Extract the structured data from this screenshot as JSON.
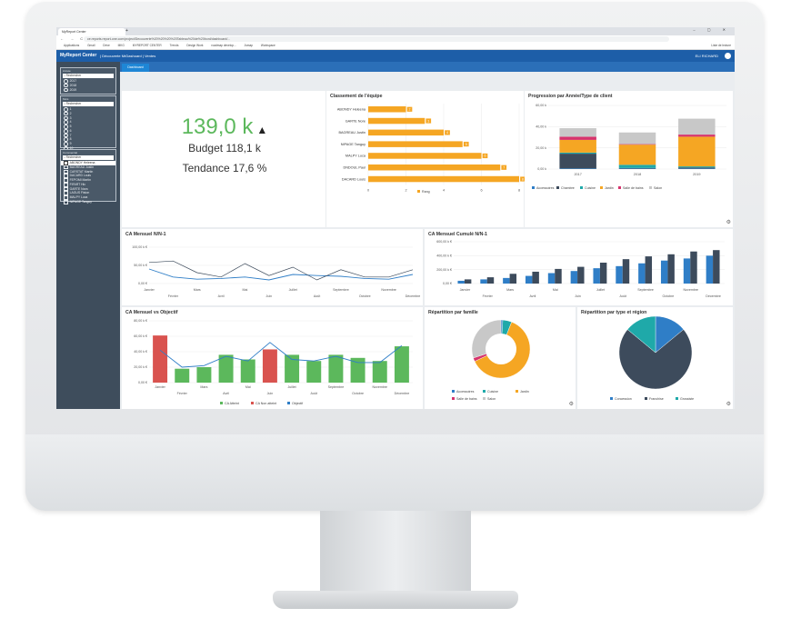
{
  "browser": {
    "tab_title": "MyReport Center",
    "url": "ce.reports.report-one.com/project/Decouverte%20%20%20%20Tableau%20de%20bord/dashboard/...",
    "window_controls": "– ▢ ✕",
    "nav": "← → C",
    "bookmarks": [
      "Applications",
      "Gmail",
      "Drive",
      "MKG",
      "MYREPORT CENTER",
      "Trends",
      "Design Work",
      "roadmap develop...",
      "Jsmap",
      "Workspace"
    ],
    "bookmarks_right": "Liste de lecture"
  },
  "app": {
    "logo": "MyReport Center",
    "breadcrumb": "| Découverte MrDashoard  |  Ventes",
    "user": "ELI RICHARD",
    "tab": "Dashboard"
  },
  "filters": {
    "annee": {
      "title": "Année",
      "search": "Rechercher",
      "items": [
        "2017",
        "2018",
        "2019"
      ]
    },
    "mois": {
      "title": "Mois",
      "search": "Rechercher",
      "items": [
        "1",
        "2",
        "3",
        "4",
        "5",
        "6",
        "7",
        "8",
        "9",
        "10"
      ]
    },
    "commercial": {
      "title": "Commercial",
      "search": "Rechercher",
      "items": [
        "ABONDY Heleena",
        "BAGREAU Justin",
        "CARSTAT Martin",
        "DACARD Louis",
        "FEPOMI Martin",
        "FIFART Hix",
        "GARTE Nora",
        "LAGUS Fiston",
        "MALPY Luca",
        "NIPAGE Tanguy"
      ]
    }
  },
  "kpi": {
    "value": "139,0 k",
    "arrow": "▲",
    "budget": "Budget 118,1 k",
    "tendance": "Tendance 17,6 %"
  },
  "colors": {
    "green": "#5cb85c",
    "red": "#d9534f",
    "blue": "#2f7ec7",
    "navy": "#3d4b5c",
    "orange": "#f5a623",
    "teal": "#1fa9a9",
    "magenta": "#d6336c",
    "gray": "#c8c8c8"
  },
  "chart_data": [
    {
      "id": "classement",
      "type": "bar",
      "title": "Classement de l'équipe",
      "orientation": "horizontal",
      "categories": [
        "ABONDY Heleena",
        "GARTE Nore",
        "BAGREAU Justin",
        "NIPAGE Tanguy",
        "MALPY Luca",
        "DNDOUL Paul",
        "DACARD Louis"
      ],
      "values": [
        2,
        3,
        4,
        5,
        6,
        7,
        8
      ],
      "xticks": [
        "0",
        "2",
        "4",
        "6",
        "8"
      ],
      "xlim": [
        0,
        8
      ],
      "legend": [
        "Rang"
      ]
    },
    {
      "id": "progression",
      "type": "bar",
      "title": "Progression par Année/Type de client",
      "stacked": true,
      "categories": [
        "2017",
        "2018",
        "2019"
      ],
      "yticks": [
        "0,00 k",
        "20,00 k",
        "40,00 k",
        "60,00 k"
      ],
      "ylim": [
        0,
        60
      ],
      "series": [
        {
          "name": "Accessoires",
          "values": [
            0.5,
            0.5,
            0.5
          ]
        },
        {
          "name": "Chambre",
          "values": [
            14,
            0.5,
            1
          ]
        },
        {
          "name": "Cuisine",
          "values": [
            1,
            3,
            1
          ]
        },
        {
          "name": "Jardin",
          "values": [
            12,
            19,
            28
          ]
        },
        {
          "name": "Salle de bains",
          "values": [
            3,
            0.5,
            2
          ]
        },
        {
          "name": "Salon",
          "values": [
            8,
            11,
            15
          ]
        }
      ]
    },
    {
      "id": "ca_mensuel",
      "type": "line",
      "title": "CA Mensuel N/N-1",
      "categories": [
        "Janvier",
        "Février",
        "Mars",
        "Avril",
        "Mai",
        "Juin",
        "Juillet",
        "Août",
        "Septembre",
        "Octobre",
        "Novembre",
        "Décembre"
      ],
      "yticks": [
        "0,00 €",
        "50,00 k €",
        "100,00 k €"
      ],
      "ylim": [
        0,
        100
      ],
      "series": [
        {
          "name": "N",
          "values": [
            40,
            18,
            12,
            14,
            18,
            10,
            25,
            22,
            20,
            14,
            12,
            25
          ]
        },
        {
          "name": "N-1",
          "values": [
            58,
            62,
            30,
            18,
            55,
            22,
            45,
            10,
            38,
            18,
            18,
            38
          ]
        }
      ]
    },
    {
      "id": "ca_cumule",
      "type": "bar",
      "title": "CA Mensuel Cumulé N/N-1",
      "categories": [
        "Janvier",
        "Février",
        "Mars",
        "Avril",
        "Mai",
        "Juin",
        "Juillet",
        "Août",
        "Septembre",
        "Octobre",
        "Novembre",
        "Décembre"
      ],
      "yticks": [
        "0,00 €",
        "200,00 k €",
        "400,00 k €",
        "600,00 k €"
      ],
      "ylim": [
        0,
        600
      ],
      "series": [
        {
          "name": "N",
          "values": [
            40,
            60,
            80,
            110,
            150,
            180,
            220,
            250,
            290,
            330,
            360,
            400
          ]
        },
        {
          "name": "N-1",
          "values": [
            60,
            90,
            140,
            170,
            210,
            240,
            300,
            350,
            390,
            420,
            460,
            480
          ]
        }
      ]
    },
    {
      "id": "ca_objectif",
      "type": "bar",
      "title": "CA Mensuel vs Objectif",
      "categories": [
        "Janvier",
        "Février",
        "Mars",
        "Avril",
        "Mai",
        "Juin",
        "Juillet",
        "Août",
        "Septembre",
        "Octobre",
        "Novembre",
        "Décembre"
      ],
      "yticks": [
        "0,00 €",
        "20,00 k €",
        "40,00 k €",
        "60,00 k €",
        "80,00 k €"
      ],
      "ylim": [
        0,
        80
      ],
      "series": [
        {
          "name": "CA Atteint",
          "values": [
            0,
            18,
            20,
            36,
            30,
            0,
            36,
            28,
            36,
            32,
            28,
            47
          ]
        },
        {
          "name": "CA Non atteint",
          "values": [
            61,
            0,
            0,
            0,
            0,
            43,
            0,
            0,
            0,
            0,
            0,
            0
          ]
        },
        {
          "name": "Objectif",
          "values": [
            42,
            20,
            22,
            34,
            28,
            52,
            30,
            28,
            34,
            26,
            26,
            48
          ]
        }
      ],
      "legend": [
        "CA Atteint",
        "CA Non atteint",
        "Objectif"
      ]
    },
    {
      "id": "repartition_famille",
      "type": "pie",
      "title": "Répartition par famille",
      "donut": true,
      "labels": [
        "Accessoires",
        "Cuisine",
        "Jardin",
        "Salle de bains",
        "Salon"
      ],
      "values": [
        1,
        5,
        62,
        2,
        30
      ]
    },
    {
      "id": "repartition_region",
      "type": "pie",
      "title": "Répartition par type et région",
      "labels": [
        "Concession",
        "Franchise",
        "Grossiste"
      ],
      "values": [
        14,
        72,
        14
      ]
    }
  ]
}
